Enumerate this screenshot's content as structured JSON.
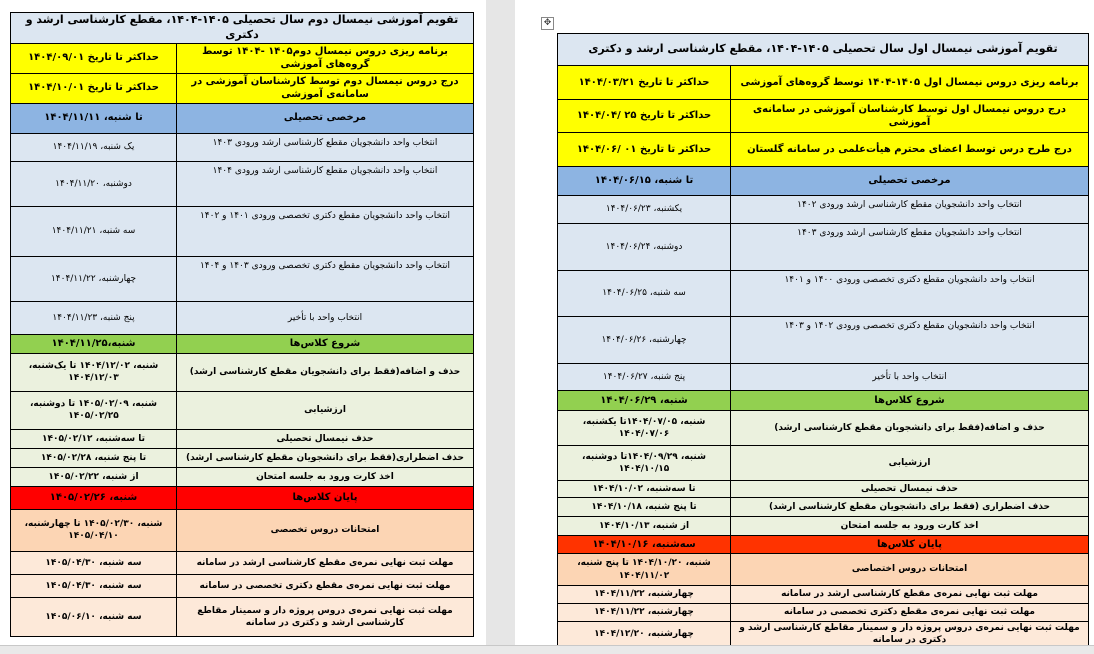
{
  "colors": {
    "yellow": "#ffff00",
    "blue": "#8db4e2",
    "light_blue": "#dce6f1",
    "green": "#92d050",
    "light_green": "#ebf1de",
    "red": "#ff0000",
    "orange": "#fcd5b4",
    "peach": "#fde9d9"
  },
  "left_table": {
    "title": "تقویم آموزشی  نیمسال دوم  سال تحصیلی ۱۴۰۵-۱۴۰۴، مقطع کارشناسی ارشد و دکتری",
    "rows": [
      {
        "style": "yellow",
        "activity": "برنامه ریزی دروس نیمسال دوم۱۴۰۵ -۱۴۰۴ توسط گروه‌های آموزشی",
        "date": "حداکثر تا تاریخ ۱۴۰۴/۰۹/۰۱"
      },
      {
        "style": "yellow",
        "activity": "درج دروس نیمسال دوم توسط کارشناسان آموزشی در سامانه‌ی آموزشی",
        "date": "حداکثر تا تاریخ ۱۴۰۴/۱۰/۰۱"
      },
      {
        "style": "blue",
        "activity": "مرخصی تحصیلی",
        "date": "تا شنبه، ۱۴۰۴/۱۱/۱۱"
      },
      {
        "style": "lblue",
        "activity": "انتخاب واحد دانشجویان مقطع کارشناسی ارشد ورودی ۱۴۰۳",
        "date": "یک شنبه، ۱۴۰۴/۱۱/۱۹"
      },
      {
        "style": "lblue",
        "activity": "انتخاب واحد دانشجویان مقطع کارشناسی ارشد ورودی ۱۴۰۴",
        "date": "دوشنبه، ۱۴۰۴/۱۱/۲۰"
      },
      {
        "style": "lblue",
        "activity": "انتخاب واحد دانشجویان مقطع دکتری تخصصی ورودی ۱۴۰۱ و ۱۴۰۲",
        "date": "سه شنبه، ۱۴۰۴/۱۱/۲۱"
      },
      {
        "style": "lblue",
        "activity": "انتخاب واحد دانشجویان مقطع دکتری تخصصی ورودی ۱۴۰۳ و ۱۴۰۴",
        "date": "چهارشنبه، ۱۴۰۴/۱۱/۲۲"
      },
      {
        "style": "lblue",
        "activity": "انتخاب واحد با تأخیر",
        "date": "پنج شنبه، ۱۴۰۴/۱۱/۲۳"
      },
      {
        "style": "green",
        "activity": "شروع کلاس‌ها",
        "date": "شنبه،۱۴۰۴/۱۱/۲۵"
      },
      {
        "style": "lgreen",
        "activity": "حذف و اضافه(فقط برای دانشجویان مقطع کارشناسی ارشد)",
        "date": "شنبه، ۱۴۰۴/۱۲/۰۲ تا یک‌شنبه، ۱۴۰۴/۱۲/۰۳"
      },
      {
        "style": "lgreen",
        "activity": "ارزشیابی",
        "date": "شنبه، ۱۴۰۵/۰۲/۰۹ تا دوشنبه، ۱۴۰۵/۰۲/۲۵"
      },
      {
        "style": "lgreen",
        "activity": "حذف نیمسال تحصیلی",
        "date": "تا سه‌شنبه، ۱۴۰۵/۰۲/۱۲"
      },
      {
        "style": "lgreen",
        "activity": "حذف اضطراری(فقط برای دانشجویان مقطع کارشناسی ارشد)",
        "date": "تا پنج شنبه، ۱۴۰۵/۰۲/۲۸"
      },
      {
        "style": "lgreen",
        "activity": "اخذ کارت ورود به جلسه امتحان",
        "date": "از شنبه، ۱۴۰۵/۰۲/۲۲"
      },
      {
        "style": "red",
        "activity": "پایان کلاس‌ها",
        "date": "شنبه، ۱۴۰۵/۰۲/۲۶"
      },
      {
        "style": "orange",
        "activity": "امتحانات دروس تخصصی",
        "date": "شنبه، ۱۴۰۵/۰۲/۳۰ تا چهارشنبه، ۱۴۰۵/۰۴/۱۰"
      },
      {
        "style": "peach",
        "activity": "مهلت ثبت نهایی نمره‌ی مقطع کارشناسی ارشد در سامانه",
        "date": "سه شنبه، ۱۴۰۵/۰۴/۳۰"
      },
      {
        "style": "peach",
        "activity": "مهلت ثبت نهایی نمره‌ی مقطع دکتری تخصصی در سامانه",
        "date": "سه شنبه، ۱۴۰۵/۰۴/۳۰"
      },
      {
        "style": "peach",
        "activity": "مهلت ثبت نهایی نمره‌ی دروس پروژه دار و سمینار مقاطع کارشناسی ارشد و دکتری در سامانه",
        "date": "سه شنبه، ۱۴۰۵/۰۶/۱۰"
      }
    ]
  },
  "right_table": {
    "title": "تقویم آموزشی نیمسال اول سال تحصیلی ۱۴۰۵-۱۴۰۴، مقطع کارشناسی ارشد و دکتری",
    "rows": [
      {
        "style": "yellow",
        "activity": "برنامه ریزی دروس نیمسال اول ۱۴۰۵-۱۴۰۴ توسط  گروه‌های آموزشی",
        "date": "حداکثر تا تاریخ ۱۴۰۴/۰۳/۲۱"
      },
      {
        "style": "yellow",
        "activity": "درج دروس نیمسال اول توسط کارشناسان آموزشی در سامانه‌ی آموزشی",
        "date": "حداکثر تا تاریخ ۲۵ /۱۴۰۴/۰۴"
      },
      {
        "style": "yellow",
        "activity": "درج طرح درس توسط اعضای محترم هیأت‌علمی در سامانه گلستان",
        "date": "حداکثر تا تاریخ ۰۱ /۱۴۰۴/۰۶"
      },
      {
        "style": "blue",
        "activity": "مرخصی تحصیلی",
        "date": "تا شنبه، ۱۴۰۴/۰۶/۱۵"
      },
      {
        "style": "lblue",
        "activity": "انتخاب واحد دانشجویان مقطع کارشناسی ارشد ورودی ۱۴۰۲",
        "date": "یکشنبه، ۱۴۰۴/۰۶/۲۳"
      },
      {
        "style": "lblue",
        "activity": "انتخاب واحد دانشجویان مقطع کارشناسی ارشد ورودی ۱۴۰۳",
        "date": "دوشنبه، ۱۴۰۴/۰۶/۲۴"
      },
      {
        "style": "lblue",
        "activity": "انتخاب واحد دانشجویان مقطع دکتری تخصصی ورودی ۱۴۰۰ و ۱۴۰۱",
        "date": "سه شنبه، ۱۴۰۴/۰۶/۲۵"
      },
      {
        "style": "lblue",
        "activity": "انتخاب واحد دانشجویان مقطع دکتری تخصصی ورودی ۱۴۰۲ و ۱۴۰۳",
        "date": "چهارشنبه، ۱۴۰۴/۰۶/۲۶"
      },
      {
        "style": "lblue",
        "activity": "انتخاب واحد با تأخیر",
        "date": "پنج شنبه، ۱۴۰۴/۰۶/۲۷"
      },
      {
        "style": "green",
        "activity": "شروع کلاس‌ها",
        "date": "شنبه، ۱۴۰۴/۰۶/۲۹"
      },
      {
        "style": "lgreen",
        "activity": "حذف و اضافه(فقط برای دانشجویان مقطع کارشناسی ارشد)",
        "date": "شنبه، ۱۴۰۴/۰۷/۰۵تا یکشنبه، ۱۴۰۴/۰۷/۰۶"
      },
      {
        "style": "lgreen",
        "activity": "ارزشیابی",
        "date": "شنبه، ۱۴۰۴/۰۹/۲۹تا دوشنبه، ۱۴۰۴/۱۰/۱۵"
      },
      {
        "style": "lgreen",
        "activity": "حذف نیمسال تحصیلی",
        "date": "تا سه‌شنبه، ۱۴۰۴/۱۰/۰۲"
      },
      {
        "style": "lgreen",
        "activity": "حذف اضطراری (فقط برای دانشجویان مقطع کارشناسی ارشد)",
        "date": "تا پنج شنبه، ۱۴۰۴/۱۰/۱۸"
      },
      {
        "style": "lgreen",
        "activity": "اخذ کارت ورود به جلسه امتحان",
        "date": "از شنبه، ۱۴۰۴/۱۰/۱۳"
      },
      {
        "style": "red2",
        "activity": "پایان کلاس‌ها",
        "date": "سه‌شنبه، ۱۴۰۴/۱۰/۱۶"
      },
      {
        "style": "orange",
        "activity": "امتحانات دروس اختصاصی",
        "date": "شنبه، ۱۴۰۴/۱۰/۲۰ تا پنج شنبه، ۱۴۰۴/۱۱/۰۲"
      },
      {
        "style": "peach",
        "activity": "مهلت ثبت نهایی نمره‌ی مقطع کارشناسی ارشد در سامانه",
        "date": "چهارشنبه، ۱۴۰۴/۱۱/۲۲"
      },
      {
        "style": "peach",
        "activity": "مهلت ثبت نهایی نمره‌ی مقطع دکتری تخصصی در سامانه",
        "date": "چهارشنبه، ۱۴۰۴/۱۱/۲۲"
      },
      {
        "style": "peach",
        "activity": "مهلت ثبت نهایی نمره‌ی دروس پروژه دار و سمینار مقاطع کارشناسی ارشد و دکتری در سامانه",
        "date": "چهارشنبه، ۱۴۰۴/۱۲/۲۰"
      }
    ]
  }
}
